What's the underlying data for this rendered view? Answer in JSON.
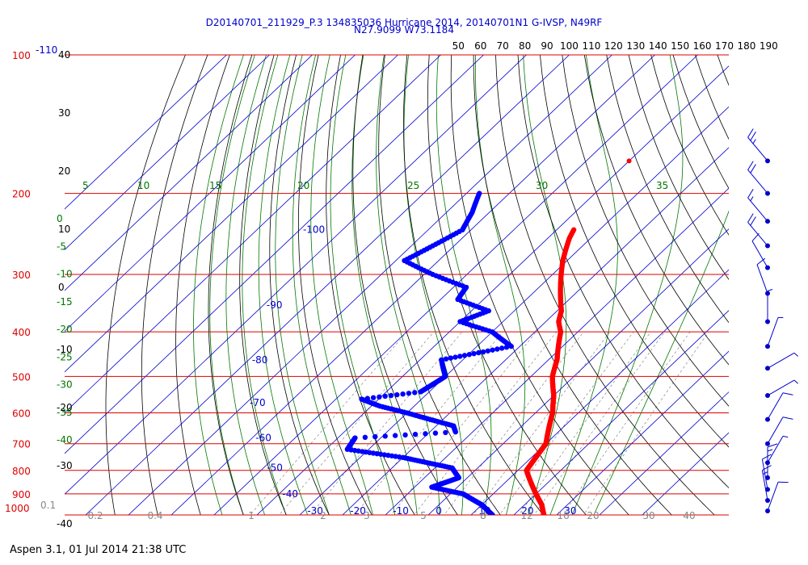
{
  "header": {
    "title_line1": "D20140701_211929_P.3 134835036 Hurricane 2014, 20140701N1 G-IVSP, N49RF",
    "title_line2": "N27.9099 W73.1184"
  },
  "footer": {
    "text": "Aspen 3.1, 01 Jul 2014  21:38 UTC"
  },
  "colors": {
    "isobar": "#dd0000",
    "temperature": "#ff0000",
    "dewpoint": "#0000ff",
    "isotherm": "#0000cc",
    "dry_adiabat": "#000000",
    "moist_adiabat": "#007700",
    "mixing_ratio": "#888888",
    "wind": "#0000cc"
  },
  "chart_data": {
    "type": "skew-t log-p",
    "pressure_labels": [
      "100",
      "200",
      "300",
      "400",
      "500",
      "600",
      "700",
      "800",
      "900",
      "1000"
    ],
    "top_axis_labels": [
      "50",
      "60",
      "70",
      "80",
      "90",
      "100",
      "110",
      "120",
      "130",
      "140",
      "150",
      "160",
      "170",
      "180",
      "190"
    ],
    "isotherm_labels": [
      "-110",
      "-100",
      "-90",
      "-80",
      "-70",
      "-60",
      "-50",
      "-40",
      "-30",
      "-20",
      "-10",
      "0",
      "10",
      "20",
      "30"
    ],
    "dry_adiabat_labels": [
      "40",
      "30",
      "20",
      "10",
      "0",
      "-10",
      "-20",
      "-30",
      "-40"
    ],
    "moist_adiabat_labels": [
      "5",
      "10",
      "15",
      "20",
      "25",
      "30",
      "35",
      "0",
      "-5",
      "-10",
      "-15",
      "-20",
      "-25",
      "-30",
      "-35",
      "-40"
    ],
    "mixing_ratio_labels": [
      "0.1",
      "0.2",
      "0.4",
      "1",
      "2",
      "3",
      "5",
      "8",
      "12",
      "16",
      "20",
      "30",
      "40"
    ],
    "temperature_profile": [
      {
        "p": 240,
        "t": -36
      },
      {
        "p": 250,
        "t": -35
      },
      {
        "p": 265,
        "t": -33
      },
      {
        "p": 280,
        "t": -31
      },
      {
        "p": 300,
        "t": -28
      },
      {
        "p": 320,
        "t": -25
      },
      {
        "p": 340,
        "t": -22
      },
      {
        "p": 360,
        "t": -19
      },
      {
        "p": 380,
        "t": -17
      },
      {
        "p": 400,
        "t": -14
      },
      {
        "p": 430,
        "t": -11
      },
      {
        "p": 460,
        "t": -8
      },
      {
        "p": 500,
        "t": -5
      },
      {
        "p": 550,
        "t": 0
      },
      {
        "p": 600,
        "t": 4
      },
      {
        "p": 650,
        "t": 7
      },
      {
        "p": 700,
        "t": 10
      },
      {
        "p": 750,
        "t": 11
      },
      {
        "p": 800,
        "t": 12
      },
      {
        "p": 850,
        "t": 16
      },
      {
        "p": 900,
        "t": 20
      },
      {
        "p": 950,
        "t": 24
      },
      {
        "p": 1000,
        "t": 27
      }
    ],
    "isolated_point": {
      "p": 170,
      "t": -40
    },
    "dewpoint_profile": [
      {
        "p": 200,
        "t": -67
      },
      {
        "p": 220,
        "t": -64
      },
      {
        "p": 240,
        "t": -62
      },
      {
        "p": 260,
        "t": -65
      },
      {
        "p": 280,
        "t": -68
      },
      {
        "p": 300,
        "t": -58
      },
      {
        "p": 320,
        "t": -47
      },
      {
        "p": 340,
        "t": -46
      },
      {
        "p": 360,
        "t": -36
      },
      {
        "p": 380,
        "t": -40
      },
      {
        "p": 400,
        "t": -30
      },
      {
        "p": 430,
        "t": -22
      },
      {
        "p": 460,
        "t": -35
      },
      {
        "p": 500,
        "t": -30
      },
      {
        "p": 540,
        "t": -32
      },
      {
        "p": 560,
        "t": -44
      },
      {
        "p": 580,
        "t": -38
      },
      {
        "p": 600,
        "t": -30
      },
      {
        "p": 640,
        "t": -16
      },
      {
        "p": 660,
        "t": -14
      },
      {
        "p": 680,
        "t": -36
      },
      {
        "p": 720,
        "t": -35
      },
      {
        "p": 750,
        "t": -20
      },
      {
        "p": 790,
        "t": -6
      },
      {
        "p": 830,
        "t": -2
      },
      {
        "p": 870,
        "t": -6
      },
      {
        "p": 900,
        "t": 3
      },
      {
        "p": 950,
        "t": 10
      },
      {
        "p": 1000,
        "t": 15
      }
    ],
    "wind_barbs": [
      {
        "p": 170,
        "dir": 320,
        "speed": 25
      },
      {
        "p": 200,
        "dir": 320,
        "speed": 20
      },
      {
        "p": 230,
        "dir": 320,
        "speed": 15
      },
      {
        "p": 260,
        "dir": 320,
        "speed": 20
      },
      {
        "p": 290,
        "dir": 330,
        "speed": 10
      },
      {
        "p": 330,
        "dir": 340,
        "speed": 10
      },
      {
        "p": 380,
        "dir": 360,
        "speed": 5
      },
      {
        "p": 430,
        "dir": 20,
        "speed": 5
      },
      {
        "p": 480,
        "dir": 60,
        "speed": 5
      },
      {
        "p": 550,
        "dir": 60,
        "speed": 5
      },
      {
        "p": 620,
        "dir": 30,
        "speed": 10
      },
      {
        "p": 700,
        "dir": 30,
        "speed": 10
      },
      {
        "p": 770,
        "dir": 30,
        "speed": 5
      },
      {
        "p": 830,
        "dir": 360,
        "speed": 15
      },
      {
        "p": 880,
        "dir": 350,
        "speed": 10
      },
      {
        "p": 930,
        "dir": 350,
        "speed": 15
      },
      {
        "p": 980,
        "dir": 20,
        "speed": 10
      }
    ]
  }
}
